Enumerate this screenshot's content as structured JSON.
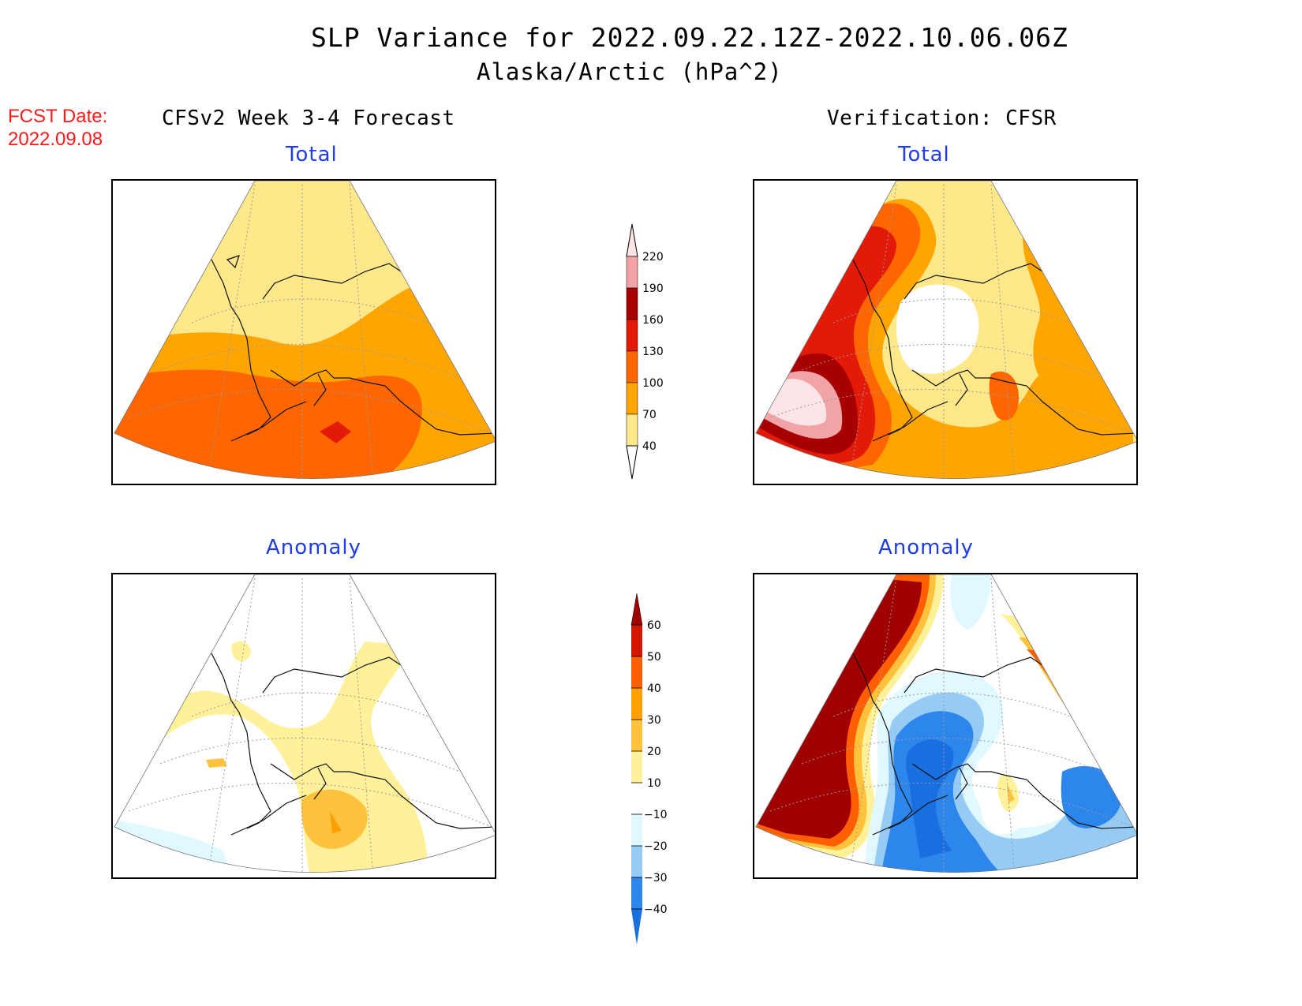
{
  "header": {
    "title": "SLP Variance for 2022.09.22.12Z-2022.10.06.06Z",
    "subtitle": "Alaska/Arctic (hPa^2)",
    "fcst_label": "FCST Date:",
    "fcst_date": "2022.09.08",
    "left_column": "CFSv2 Week 3-4 Forecast",
    "right_column": "Verification: CFSR"
  },
  "panels": {
    "fcst_total": "Total",
    "verif_total": "Total",
    "fcst_anomaly": "Anomaly",
    "verif_anomaly": "Anomaly"
  },
  "colorbars": {
    "total": {
      "levels": [
        "40",
        "70",
        "100",
        "130",
        "160",
        "190",
        "220"
      ],
      "colors": [
        "#ffe88a",
        "#ffa500",
        "#ff6600",
        "#e31a08",
        "#a80000",
        "#f2a3a6",
        "#fde4e6"
      ]
    },
    "anomaly": {
      "levels": [
        "-40",
        "-30",
        "-20",
        "-10",
        "10",
        "20",
        "30",
        "40",
        "50",
        "60"
      ],
      "colors": [
        "#1a6fe0",
        "#2d86eb",
        "#96cbf5",
        "#e0f8ff",
        "#ffffff",
        "#fff19a",
        "#ffc23c",
        "#ffa000",
        "#ff5f00",
        "#d41500",
        "#a10000"
      ]
    }
  }
}
